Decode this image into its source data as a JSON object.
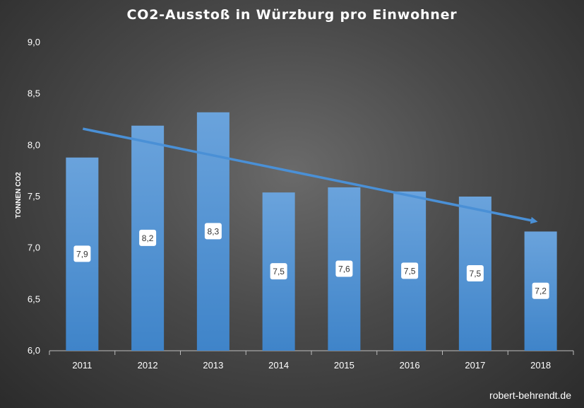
{
  "title": "CO2-Ausstoß in Würzburg pro Einwohner",
  "watermark": "robert-behrendt.de",
  "chart_data": {
    "type": "bar",
    "title": "CO2-Ausstoß in Würzburg pro Einwohner",
    "xlabel": "",
    "ylabel": "TONNEN CO2",
    "categories": [
      "2011",
      "2012",
      "2013",
      "2014",
      "2015",
      "2016",
      "2017",
      "2018"
    ],
    "values": [
      7.88,
      8.19,
      8.32,
      7.54,
      7.59,
      7.55,
      7.5,
      7.16
    ],
    "data_labels": [
      "7,9",
      "8,2",
      "8,3",
      "7,5",
      "7,6",
      "7,5",
      "7,5",
      "7,2"
    ],
    "ylim": [
      6.0,
      9.0
    ],
    "y_ticks": [
      6.0,
      6.5,
      7.0,
      7.5,
      8.0,
      8.5,
      9.0
    ],
    "y_tick_labels": [
      "6,0",
      "6,5",
      "7,0",
      "7,5",
      "8,0",
      "8,5",
      "9,0"
    ],
    "grid": false,
    "legend": "none",
    "trend_arrow": {
      "from": {
        "x": "2011",
        "y": 8.16
      },
      "to": {
        "x": "2018",
        "y": 7.26
      }
    },
    "colors": {
      "bar_top": "#6aa3dc",
      "bar_bottom": "#3f84c9",
      "arrow": "#4a90d6",
      "label_box": "#ffffff"
    }
  }
}
